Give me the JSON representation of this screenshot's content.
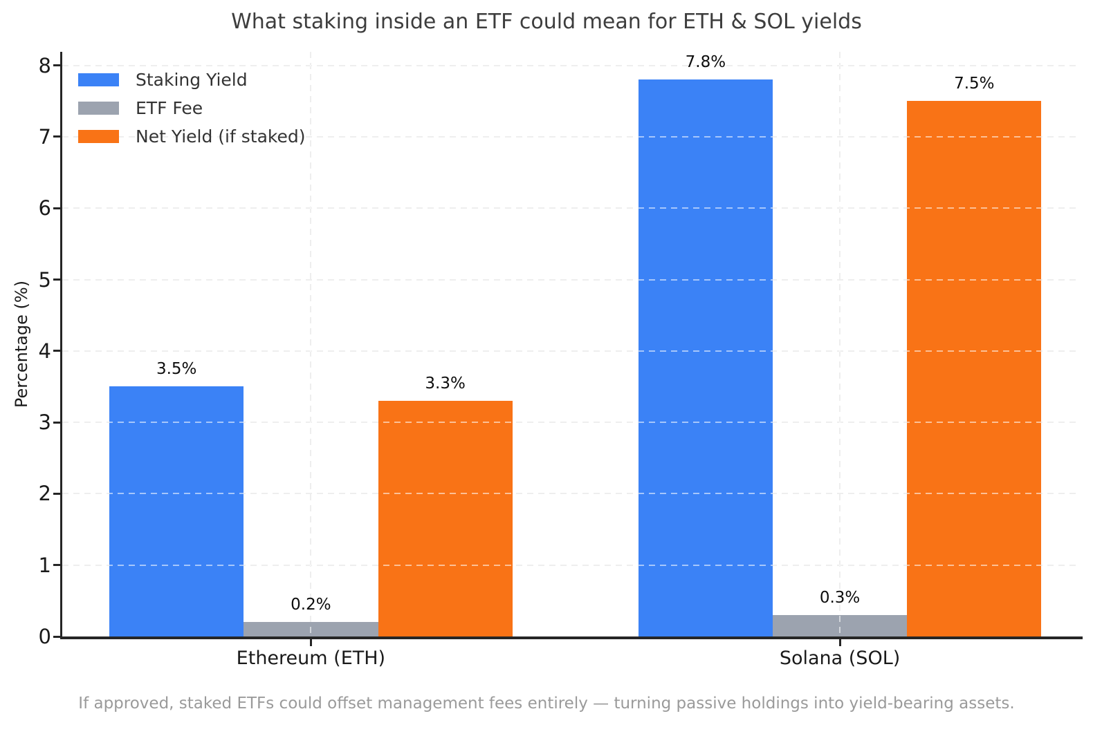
{
  "chart_data": {
    "type": "bar",
    "title": "What staking inside an ETF could mean for ETH & SOL yields",
    "caption": "If approved, staked ETFs could offset management fees entirely — turning passive holdings into yield-bearing assets.",
    "categories": [
      "Ethereum (ETH)",
      "Solana (SOL)"
    ],
    "series": [
      {
        "name": "Staking Yield",
        "color": "#3b82f6",
        "values": [
          3.5,
          7.8
        ],
        "labels": [
          "3.5%",
          "7.8%"
        ]
      },
      {
        "name": "ETF Fee",
        "color": "#9ca3af",
        "values": [
          0.2,
          0.3
        ],
        "labels": [
          "0.2%",
          "0.3%"
        ]
      },
      {
        "name": "Net Yield (if staked)",
        "color": "#f97316",
        "values": [
          3.3,
          7.5
        ],
        "labels": [
          "3.3%",
          "7.5%"
        ]
      }
    ],
    "xlabel": "",
    "ylabel": "Percentage (%)",
    "ylim": [
      0,
      8.19
    ],
    "xlim": [
      -0.47,
      1.455
    ],
    "yticks": [
      0,
      1,
      2,
      3,
      4,
      5,
      6,
      7,
      8
    ],
    "bar_width": 0.254,
    "grid": true,
    "grid_style": "dashed",
    "legend_position": "upper left",
    "legend_frame": false
  }
}
